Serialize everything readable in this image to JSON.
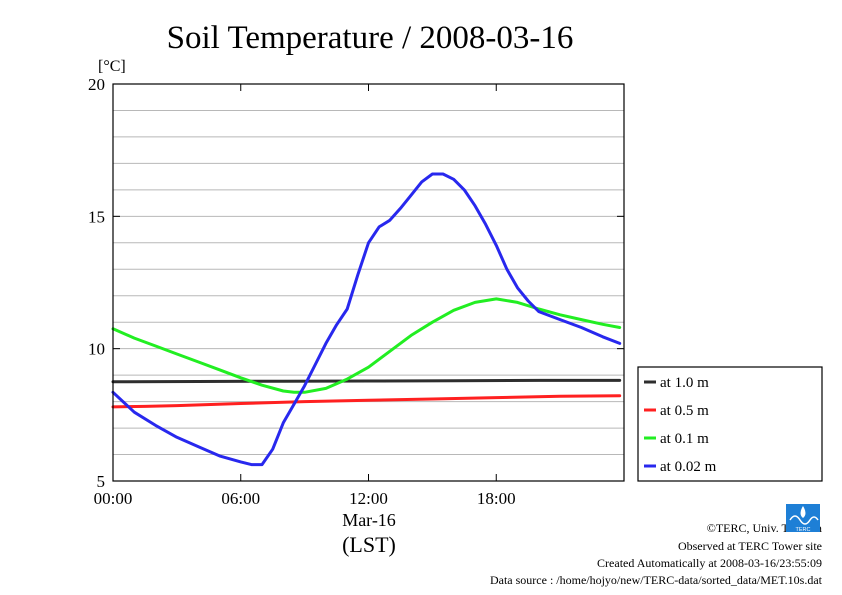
{
  "chart_data": {
    "type": "line",
    "title": "Soil Temperature / 2008-03-16",
    "ylabel": "[°C]",
    "xlabel_date": "Mar-16",
    "xlabel_unit": "(LST)",
    "ylim": [
      5,
      20
    ],
    "xlim": [
      0,
      24
    ],
    "y_ticks": [
      5,
      10,
      15,
      20
    ],
    "y_tick_labels": [
      "5",
      "10",
      "15",
      "20"
    ],
    "y_gridlines": [
      6,
      7,
      8,
      9,
      10,
      11,
      12,
      13,
      14,
      15,
      16,
      17,
      18,
      19
    ],
    "x_ticks": [
      0,
      6,
      12,
      18
    ],
    "x_tick_labels": [
      "00:00",
      "06:00",
      "12:00",
      "18:00"
    ],
    "grid": true,
    "legend_position": "right",
    "series": [
      {
        "name": "at 1.0 m",
        "color": "#2e2e2e",
        "x": [
          0,
          4,
          8,
          12,
          16,
          20,
          23.8
        ],
        "values": [
          8.75,
          8.76,
          8.77,
          8.78,
          8.79,
          8.8,
          8.8
        ]
      },
      {
        "name": "at 0.5 m",
        "color": "#ff2020",
        "x": [
          0,
          1.5,
          3,
          6,
          9,
          12,
          15,
          18,
          21,
          23.8
        ],
        "values": [
          7.8,
          7.82,
          7.85,
          7.93,
          8.0,
          8.05,
          8.1,
          8.15,
          8.2,
          8.22
        ]
      },
      {
        "name": "at 0.1 m",
        "color": "#22ee22",
        "x": [
          0,
          1,
          2,
          3,
          4,
          5,
          6,
          7,
          8,
          8.5,
          9,
          10,
          11,
          12,
          13,
          14,
          15,
          16,
          17,
          18,
          19,
          20,
          21,
          22,
          23,
          23.8
        ],
        "values": [
          10.75,
          10.4,
          10.1,
          9.8,
          9.5,
          9.2,
          8.9,
          8.62,
          8.4,
          8.35,
          8.35,
          8.5,
          8.85,
          9.3,
          9.9,
          10.5,
          11.0,
          11.45,
          11.75,
          11.88,
          11.75,
          11.5,
          11.28,
          11.1,
          10.92,
          10.8
        ]
      },
      {
        "name": "at 0.02 m",
        "color": "#2828ee",
        "x": [
          0,
          1,
          2,
          3,
          4,
          5,
          6,
          6.5,
          7,
          7.5,
          8,
          8.5,
          9,
          9.5,
          10,
          10.5,
          11,
          11.5,
          12,
          12.5,
          13,
          13.5,
          14,
          14.5,
          15,
          15.5,
          16,
          16.5,
          17,
          17.5,
          18,
          18.5,
          19,
          19.5,
          20,
          21,
          22,
          23,
          23.8
        ],
        "values": [
          8.35,
          7.6,
          7.1,
          6.65,
          6.3,
          5.95,
          5.72,
          5.62,
          5.62,
          6.2,
          7.2,
          7.9,
          8.6,
          9.4,
          10.2,
          10.9,
          11.5,
          12.8,
          14.0,
          14.6,
          14.85,
          15.3,
          15.8,
          16.3,
          16.6,
          16.6,
          16.4,
          16.0,
          15.4,
          14.7,
          13.9,
          13.0,
          12.3,
          11.8,
          11.4,
          11.1,
          10.8,
          10.45,
          10.2
        ]
      }
    ]
  },
  "credits": {
    "copyright": "©TERC, Univ. Tsukuba",
    "observed": "Observed at TERC Tower site",
    "created": "Created Automatically at 2008-03-16/23:55:09",
    "source": "Data source : /home/hojyo/new/TERC-data/sorted_data/MET.10s.dat"
  },
  "logo": {
    "text": "TERC",
    "color": "#1e7fd6"
  }
}
